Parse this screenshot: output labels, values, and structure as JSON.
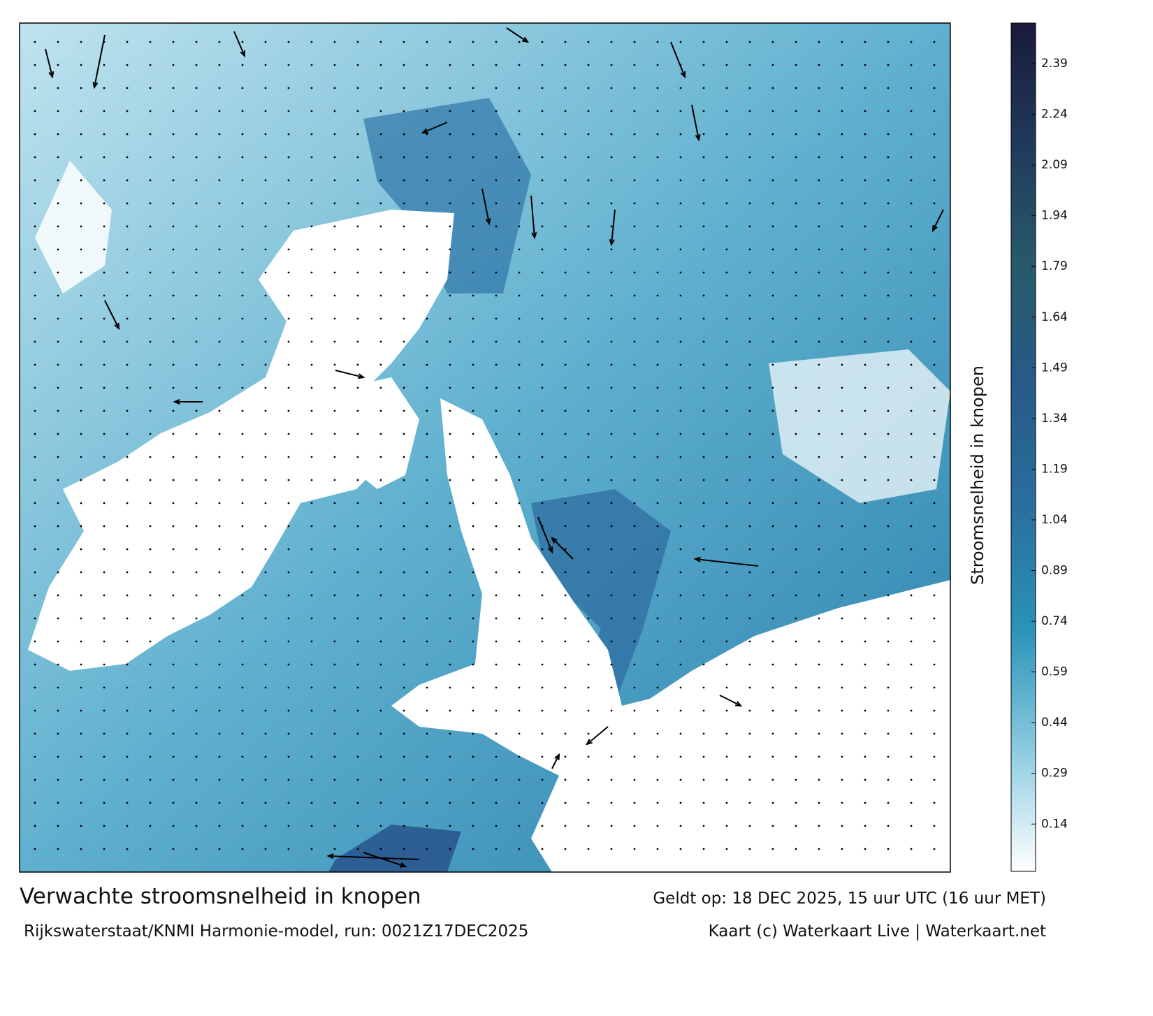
{
  "map": {
    "title": "Verwachte stroomsnelheid in knopen",
    "valid_time": "Geldt op: 18 DEC 2025, 15 uur UTC (16 uur MET)",
    "model_run": "Rijkswaterstaat/KNMI Harmonie-model, run: 0021Z17DEC2025",
    "credit": "Kaart (c) Waterkaart Live | Waterkaart.net",
    "colorbar": {
      "label": "Stroomsnelheid in knopen",
      "clim": [
        0,
        2.51
      ],
      "ticks": [
        0.14,
        0.29,
        0.44,
        0.59,
        0.74,
        0.89,
        1.04,
        1.19,
        1.34,
        1.49,
        1.64,
        1.79,
        1.94,
        2.09,
        2.24,
        2.39
      ],
      "colors": [
        "#ffffff",
        "#8ccbe0",
        "#2a93b8",
        "#2a6f9c",
        "#275a8a",
        "#285a6a",
        "#203a5c",
        "#1a1a3a"
      ]
    }
  }
}
